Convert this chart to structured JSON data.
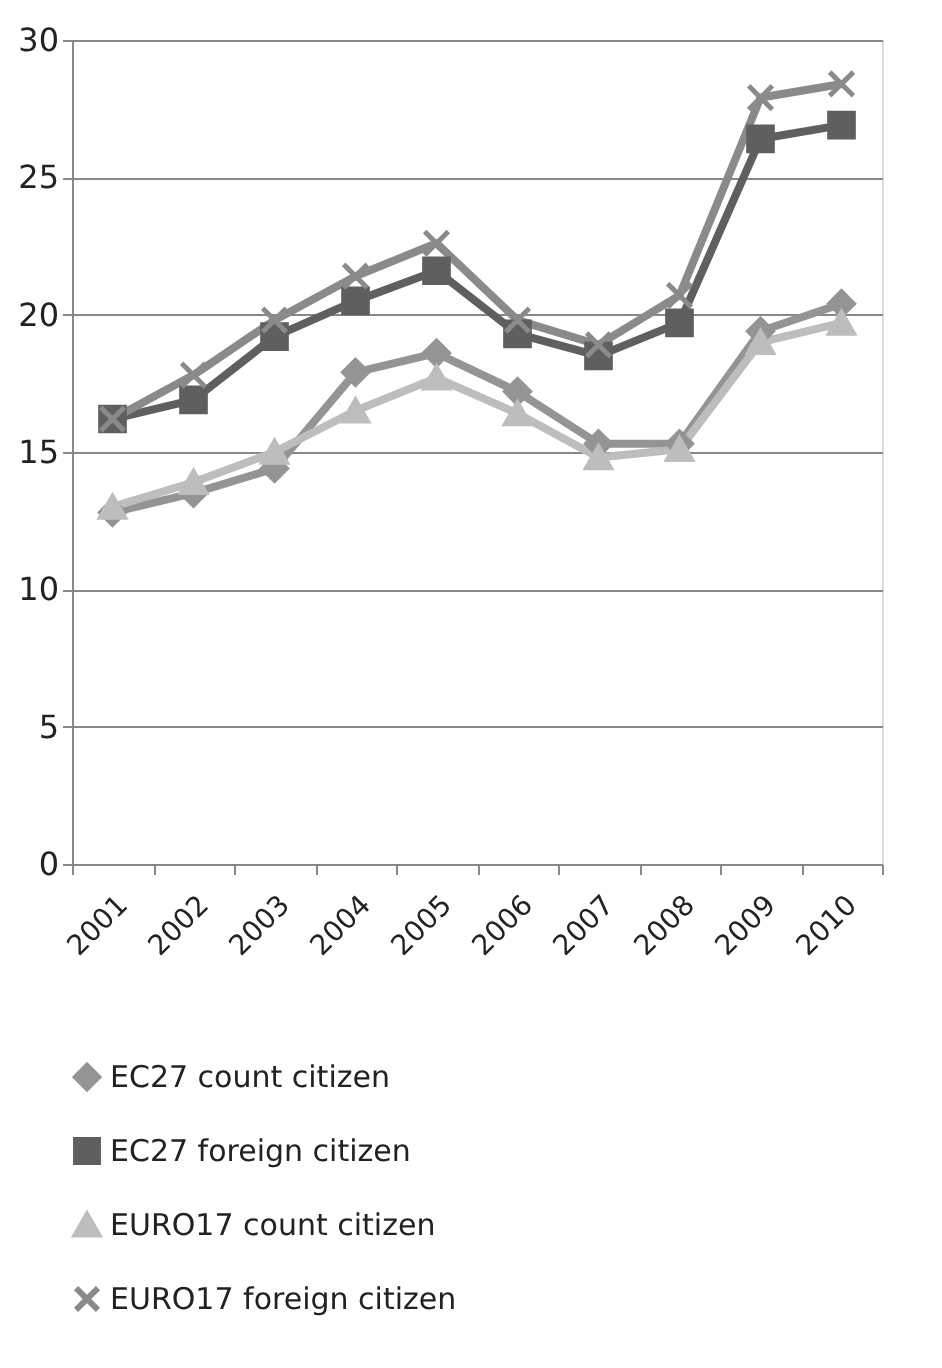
{
  "chart_data": {
    "type": "line",
    "categories": [
      "2001",
      "2002",
      "2003",
      "2004",
      "2005",
      "2006",
      "2007",
      "2008",
      "2009",
      "2010"
    ],
    "series": [
      {
        "name": "EC27 count citizen",
        "color": "#949494",
        "marker": "diamond",
        "values": [
          12.8,
          13.5,
          14.4,
          17.9,
          18.6,
          17.2,
          15.3,
          15.3,
          19.4,
          20.4
        ]
      },
      {
        "name": "EC27 foreign citizen",
        "color": "#5f5f5f",
        "marker": "square",
        "values": [
          16.2,
          16.9,
          19.2,
          20.5,
          21.6,
          19.3,
          18.5,
          19.7,
          26.4,
          26.9
        ]
      },
      {
        "name": "EURO17 count citizen",
        "color": "#bdbdbd",
        "marker": "triangle",
        "values": [
          13.0,
          13.9,
          15.0,
          16.5,
          17.7,
          16.4,
          14.8,
          15.1,
          19.0,
          19.7
        ]
      },
      {
        "name": "EURO17 foreign citizen",
        "color": "#8a8a8a",
        "marker": "cross",
        "values": [
          16.2,
          17.8,
          19.8,
          21.4,
          22.6,
          19.8,
          18.9,
          20.7,
          27.9,
          28.4
        ]
      }
    ],
    "ylim": [
      0,
      30
    ],
    "yticks": [
      0,
      5,
      10,
      15,
      20,
      25,
      30
    ],
    "grid": "y",
    "legend": "bottom",
    "line_style": "solid"
  }
}
